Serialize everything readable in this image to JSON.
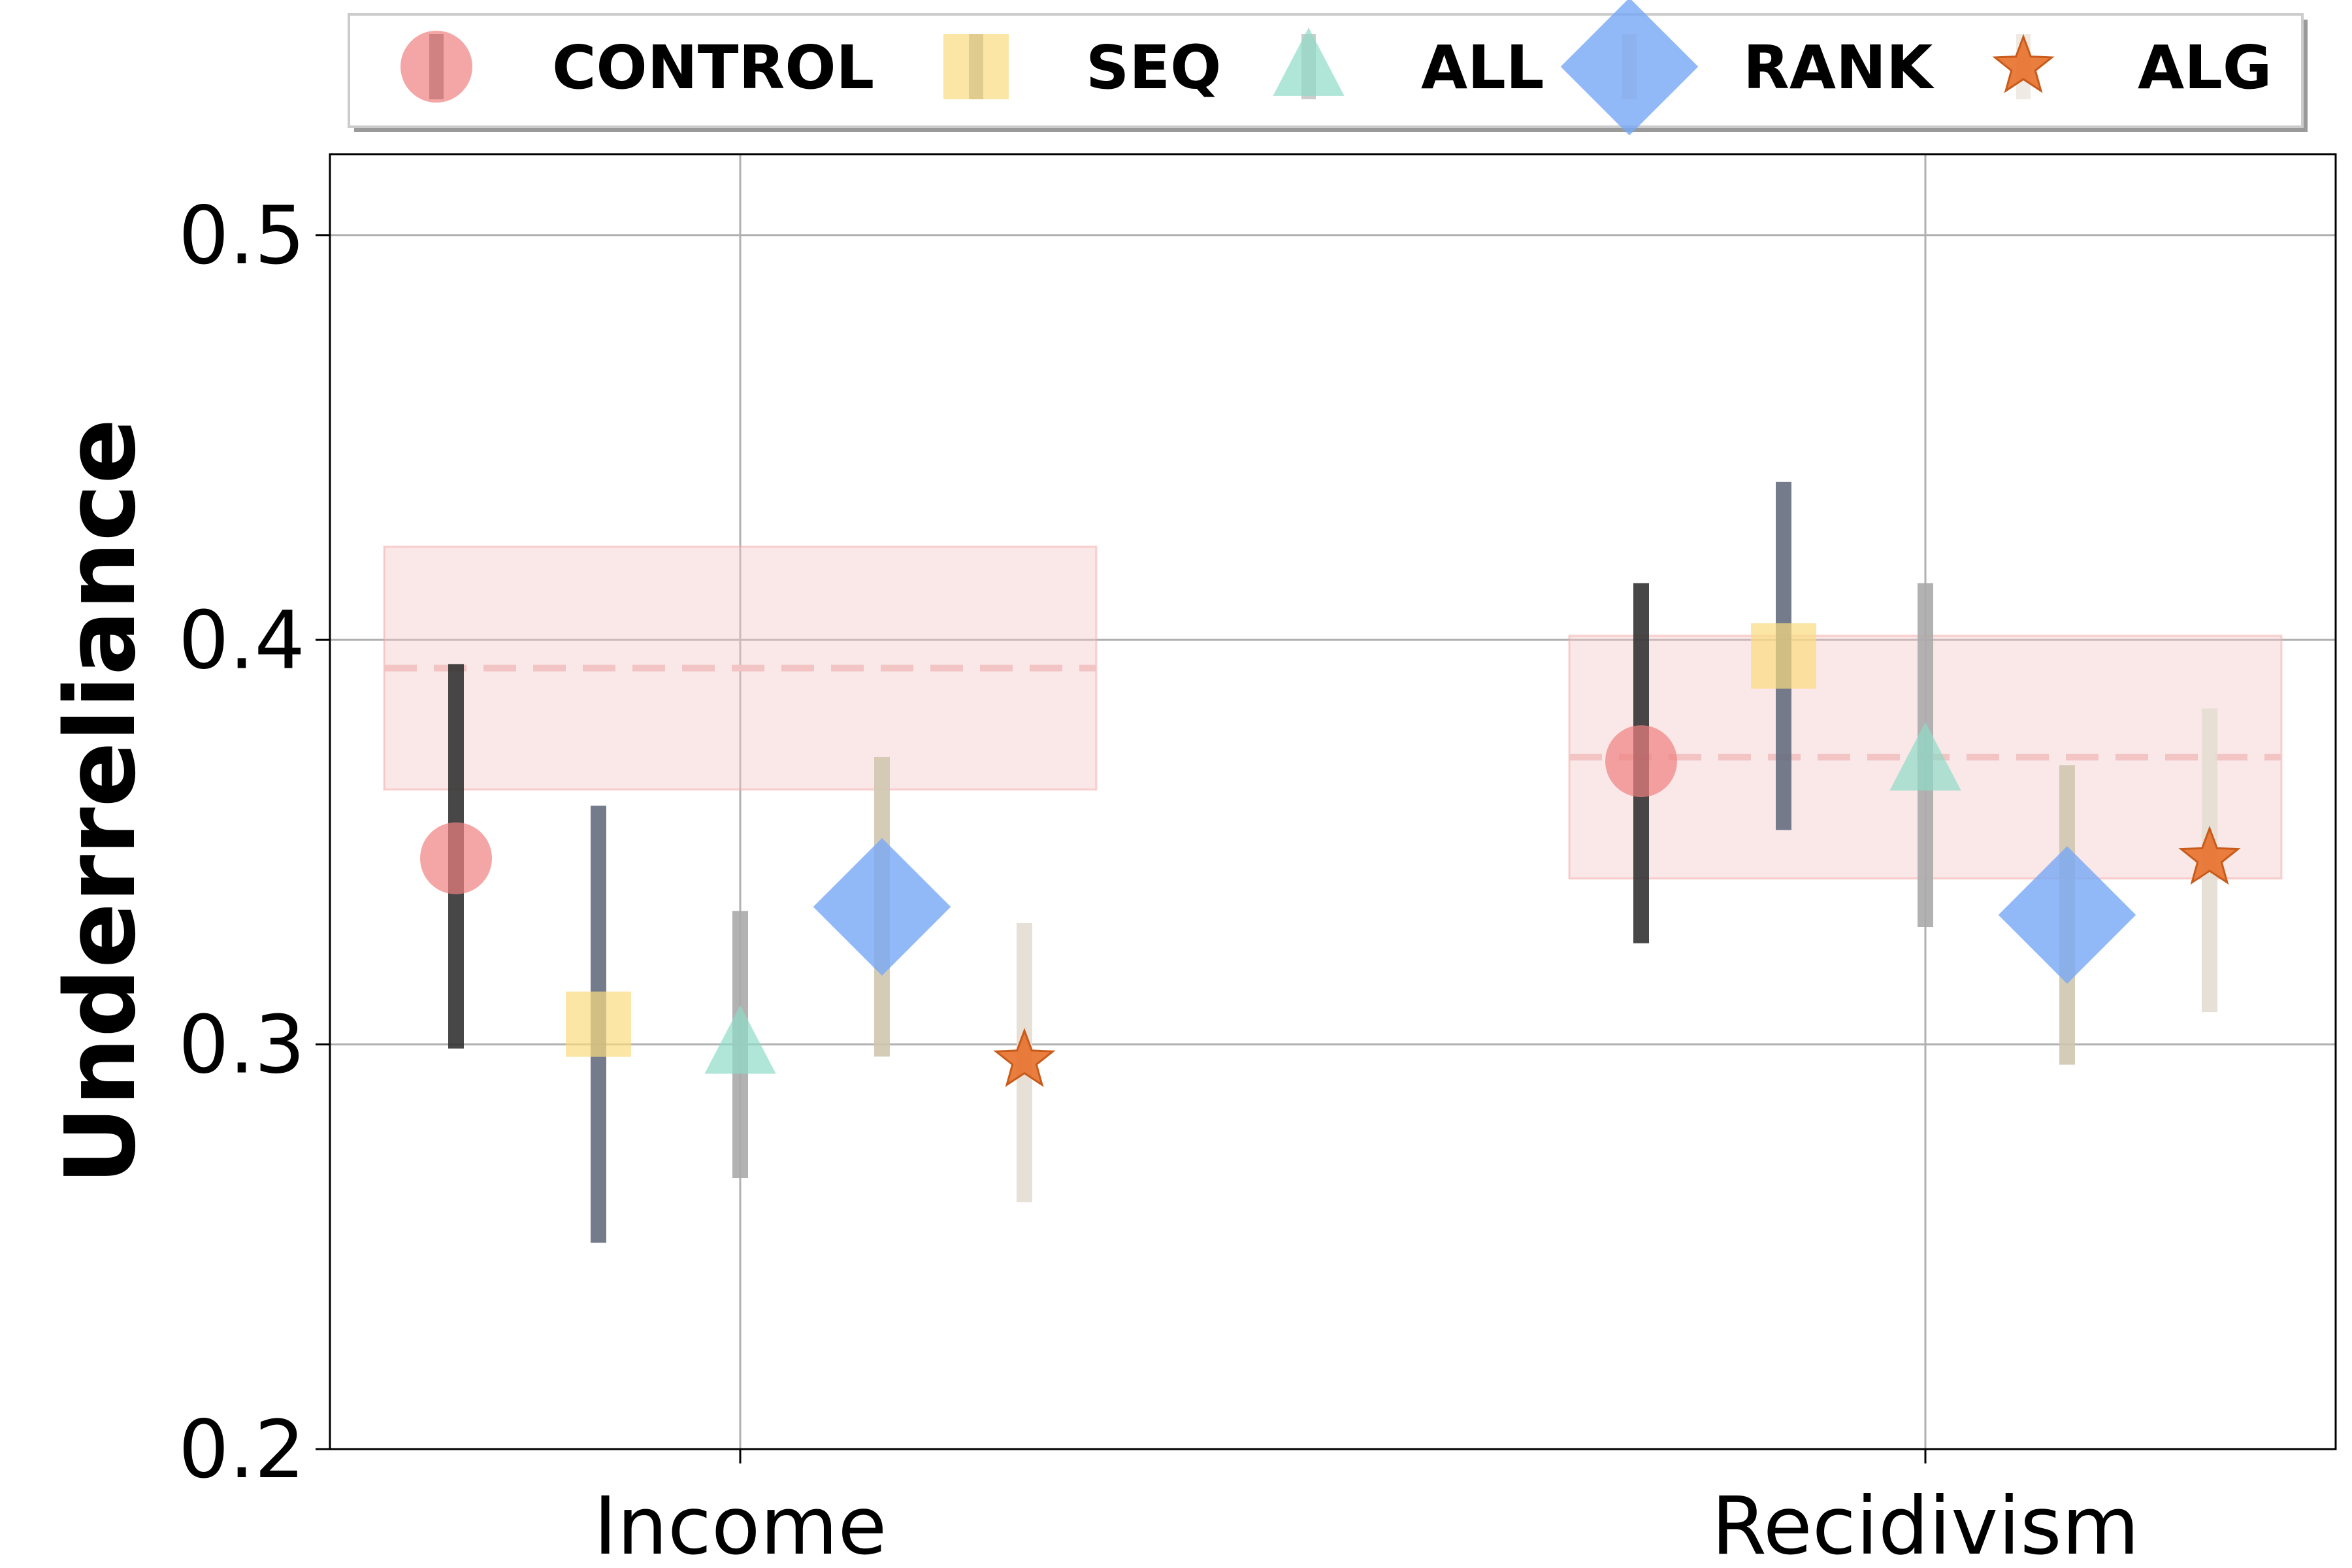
{
  "chart_data": {
    "type": "scatter",
    "title": "",
    "xlabel": "",
    "ylabel": "Underreliance",
    "ylim": [
      0.2,
      0.52
    ],
    "yticks": [
      0.2,
      0.3,
      0.4,
      0.5
    ],
    "ytick_labels": [
      "0.2",
      "0.3",
      "0.4",
      "0.5"
    ],
    "grid": true,
    "legend_position": "top, above plot",
    "categories": [
      "Income",
      "Recidivism"
    ],
    "control_band": [
      {
        "category": "Income",
        "mean": 0.393,
        "low": 0.363,
        "high": 0.423
      },
      {
        "category": "Recidivism",
        "mean": 0.371,
        "low": 0.341,
        "high": 0.401
      }
    ],
    "series": [
      {
        "name": "CONTROL",
        "marker": "circle",
        "color": "#f08080",
        "error_color": "#333333",
        "values": [
          0.346,
          0.37
        ],
        "low": [
          0.299,
          0.325
        ],
        "high": [
          0.394,
          0.414
        ]
      },
      {
        "name": "SEQ",
        "marker": "square",
        "color": "#f9dc80",
        "error_color": "#656e80",
        "values": [
          0.305,
          0.396
        ],
        "low": [
          0.251,
          0.353
        ],
        "high": [
          0.359,
          0.439
        ]
      },
      {
        "name": "ALL",
        "marker": "triangle",
        "color": "#8fdcc8",
        "error_color": "#aaaaaa",
        "values": [
          0.3,
          0.37
        ],
        "low": [
          0.267,
          0.329
        ],
        "high": [
          0.333,
          0.414
        ]
      },
      {
        "name": "RANK",
        "marker": "diamond",
        "color": "#77a8f5",
        "error_color": "#d0c6b0",
        "values": [
          0.334,
          0.332
        ],
        "low": [
          0.297,
          0.295
        ],
        "high": [
          0.371,
          0.369
        ]
      },
      {
        "name": "ALG",
        "marker": "star",
        "color": "#e8702a",
        "error_color": "#e4ddd2",
        "values": [
          0.296,
          0.346
        ],
        "low": [
          0.261,
          0.308
        ],
        "high": [
          0.33,
          0.383
        ]
      }
    ]
  }
}
